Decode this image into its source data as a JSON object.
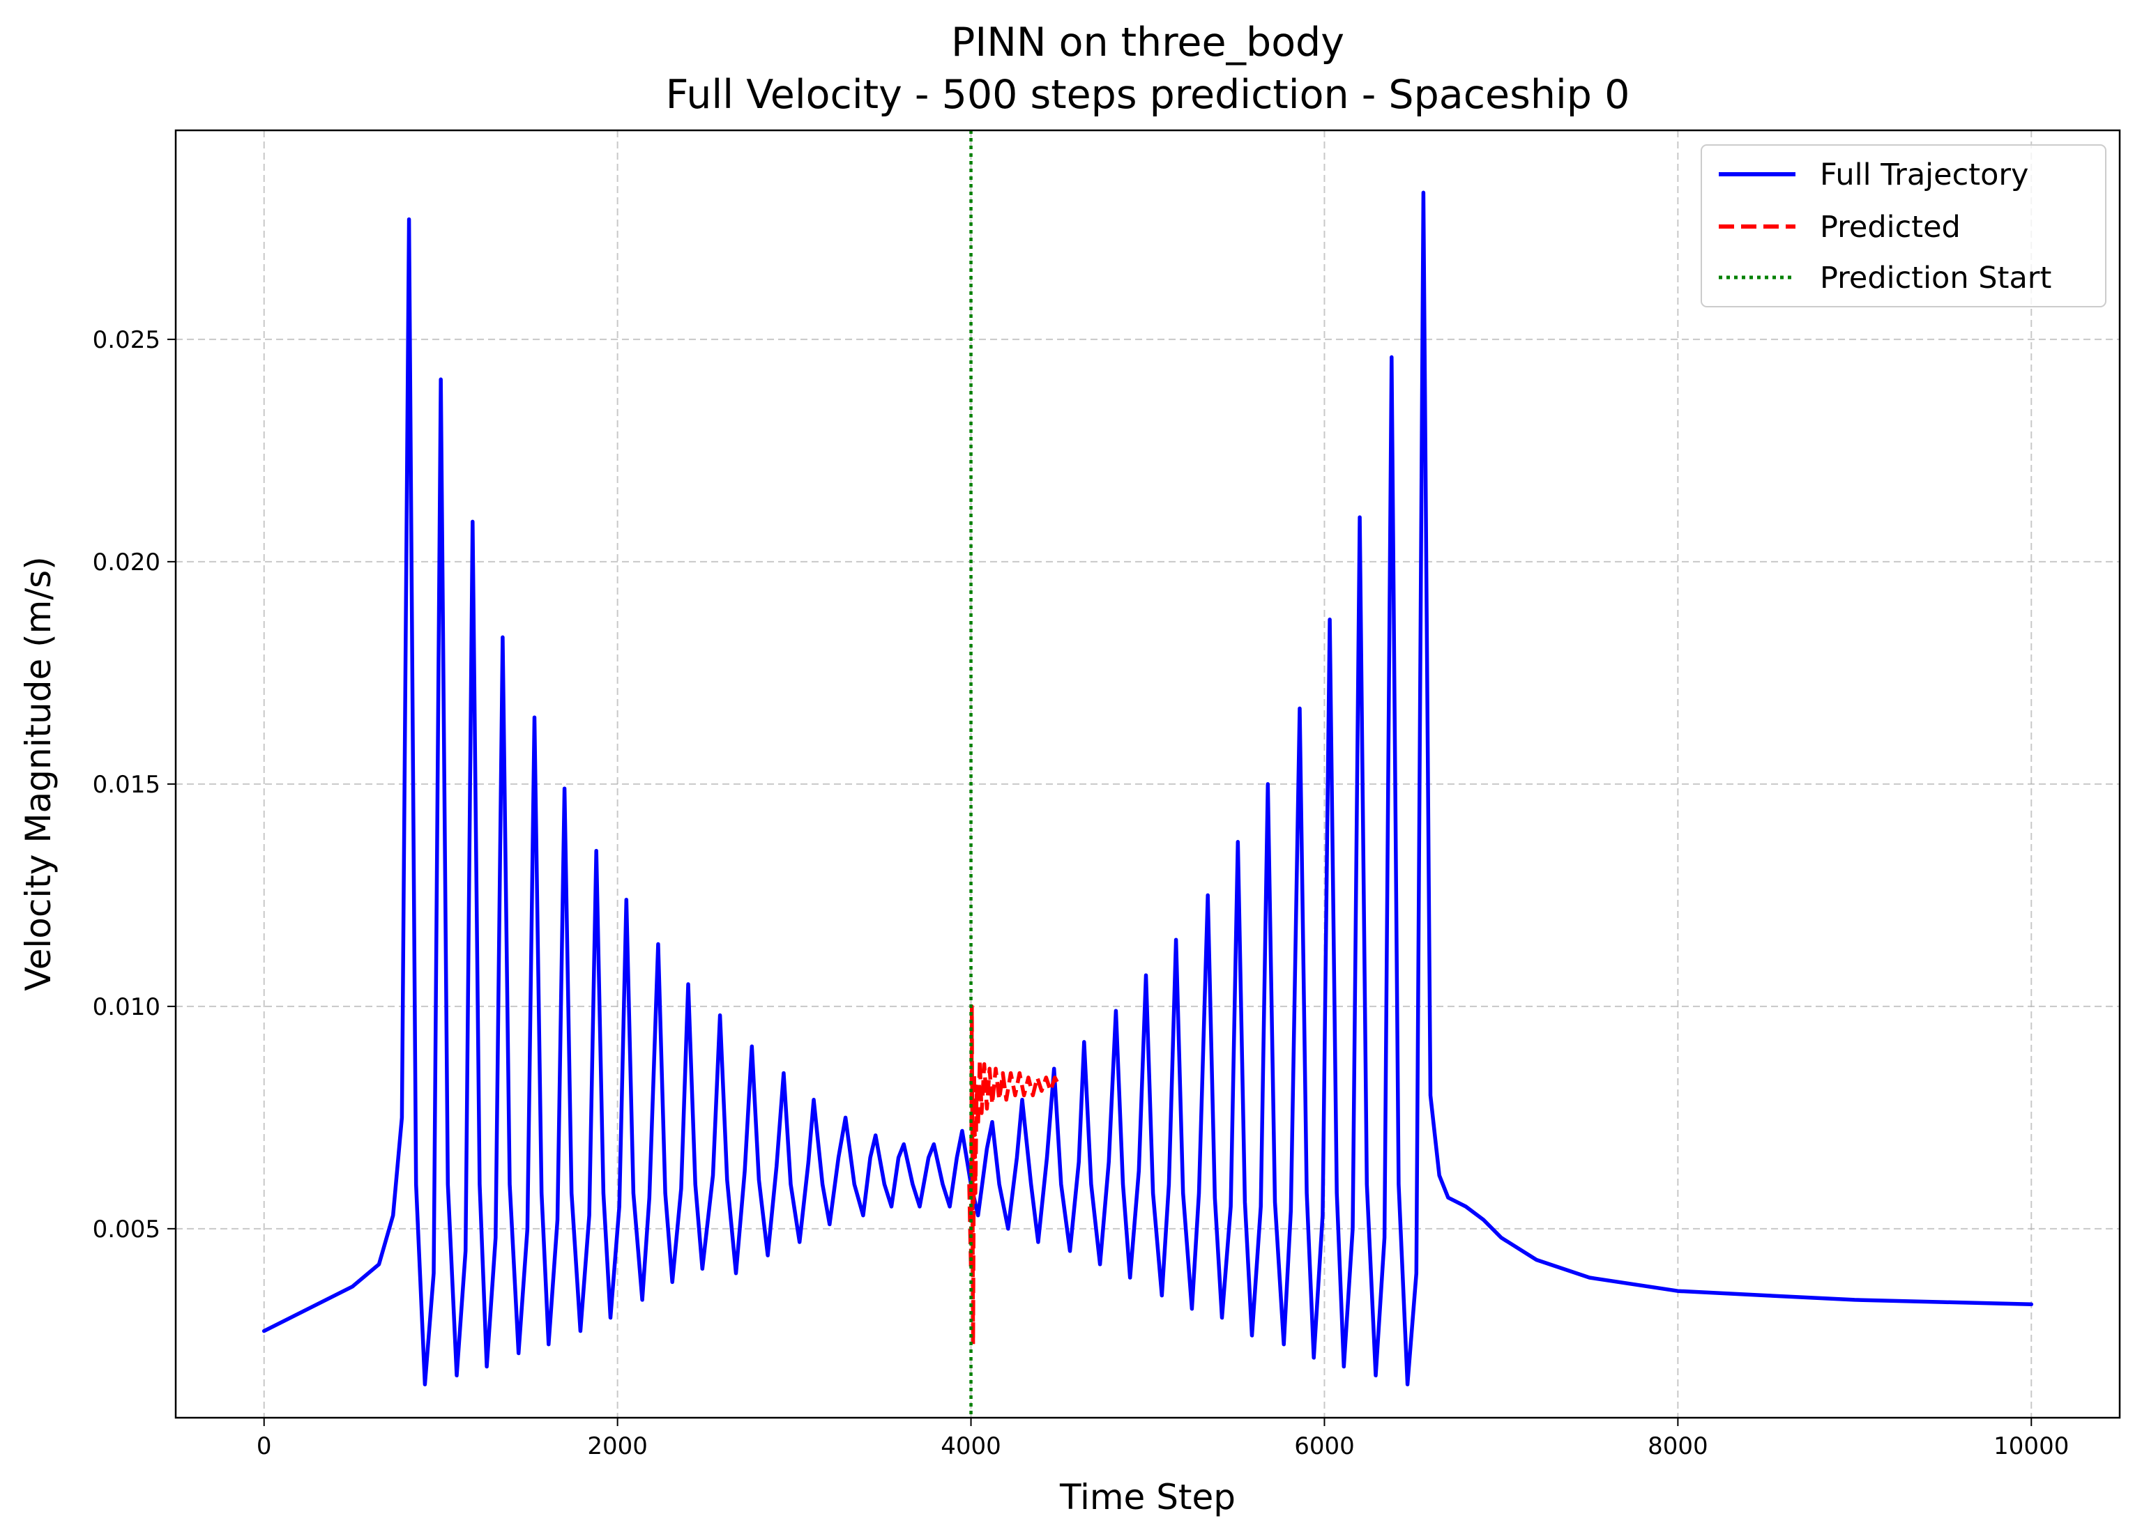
{
  "chart_data": {
    "type": "line",
    "title": "PINN on three_body",
    "subtitle": "Full Velocity - 500 steps prediction - Spaceship 0",
    "xlabel": "Time Step",
    "ylabel": "Velocity Magnitude (m/s)",
    "xlim": [
      -500,
      10500
    ],
    "ylim": [
      0.00075,
      0.0297
    ],
    "x_ticks": [
      0,
      2000,
      4000,
      6000,
      8000,
      10000
    ],
    "x_tick_labels": [
      "0",
      "2000",
      "4000",
      "6000",
      "8000",
      "10000"
    ],
    "y_ticks": [
      0.005,
      0.01,
      0.015,
      0.02,
      0.025
    ],
    "y_tick_labels": [
      "0.005",
      "0.010",
      "0.015",
      "0.020",
      "0.025"
    ],
    "grid": true,
    "legend_position": "top-right",
    "colors": {
      "full": "#0000ff",
      "predicted": "#ff0000",
      "start": "#008000",
      "grid": "#b0b0b0"
    },
    "legend": [
      {
        "label": "Full Trajectory",
        "style": "solid",
        "color": "#0000ff"
      },
      {
        "label": "Predicted",
        "style": "dashed",
        "color": "#ff0000"
      },
      {
        "label": "Prediction Start",
        "style": "dotted",
        "color": "#008000"
      }
    ],
    "series": [
      {
        "name": "Full Trajectory",
        "style": "solid",
        "color": "#0000ff",
        "points": [
          [
            0,
            0.0027
          ],
          [
            300,
            0.0033
          ],
          [
            500,
            0.0037
          ],
          [
            650,
            0.0042
          ],
          [
            730,
            0.0053
          ],
          [
            780,
            0.0075
          ],
          [
            820,
            0.0277
          ],
          [
            860,
            0.006
          ],
          [
            910,
            0.0015
          ],
          [
            960,
            0.004
          ],
          [
            1000,
            0.0241
          ],
          [
            1040,
            0.006
          ],
          [
            1090,
            0.0017
          ],
          [
            1140,
            0.0045
          ],
          [
            1180,
            0.0209
          ],
          [
            1220,
            0.006
          ],
          [
            1260,
            0.0019
          ],
          [
            1310,
            0.0048
          ],
          [
            1350,
            0.0183
          ],
          [
            1390,
            0.006
          ],
          [
            1440,
            0.0022
          ],
          [
            1490,
            0.005
          ],
          [
            1530,
            0.0165
          ],
          [
            1570,
            0.0058
          ],
          [
            1610,
            0.0024
          ],
          [
            1660,
            0.0052
          ],
          [
            1700,
            0.0149
          ],
          [
            1740,
            0.0058
          ],
          [
            1790,
            0.0027
          ],
          [
            1840,
            0.0053
          ],
          [
            1880,
            0.0135
          ],
          [
            1920,
            0.0058
          ],
          [
            1960,
            0.003
          ],
          [
            2010,
            0.0055
          ],
          [
            2050,
            0.0124
          ],
          [
            2090,
            0.0058
          ],
          [
            2140,
            0.0034
          ],
          [
            2180,
            0.0057
          ],
          [
            2230,
            0.0114
          ],
          [
            2270,
            0.0058
          ],
          [
            2310,
            0.0038
          ],
          [
            2360,
            0.0059
          ],
          [
            2400,
            0.0105
          ],
          [
            2440,
            0.006
          ],
          [
            2480,
            0.0041
          ],
          [
            2540,
            0.0062
          ],
          [
            2580,
            0.0098
          ],
          [
            2620,
            0.0061
          ],
          [
            2670,
            0.004
          ],
          [
            2720,
            0.0063
          ],
          [
            2760,
            0.0091
          ],
          [
            2800,
            0.0061
          ],
          [
            2850,
            0.0044
          ],
          [
            2900,
            0.0064
          ],
          [
            2940,
            0.0085
          ],
          [
            2980,
            0.006
          ],
          [
            3030,
            0.0047
          ],
          [
            3080,
            0.0065
          ],
          [
            3110,
            0.0079
          ],
          [
            3160,
            0.006
          ],
          [
            3200,
            0.0051
          ],
          [
            3250,
            0.0066
          ],
          [
            3290,
            0.0075
          ],
          [
            3340,
            0.006
          ],
          [
            3390,
            0.0053
          ],
          [
            3430,
            0.0066
          ],
          [
            3460,
            0.0071
          ],
          [
            3510,
            0.006
          ],
          [
            3550,
            0.0055
          ],
          [
            3590,
            0.0066
          ],
          [
            3620,
            0.0069
          ],
          [
            3670,
            0.006
          ],
          [
            3710,
            0.0055
          ],
          [
            3760,
            0.0066
          ],
          [
            3790,
            0.0069
          ],
          [
            3840,
            0.006
          ],
          [
            3880,
            0.0055
          ],
          [
            3920,
            0.0066
          ],
          [
            3950,
            0.0072
          ],
          [
            4000,
            0.006
          ],
          [
            4040,
            0.0053
          ],
          [
            4090,
            0.0068
          ],
          [
            4120,
            0.0074
          ],
          [
            4160,
            0.006
          ],
          [
            4210,
            0.005
          ],
          [
            4260,
            0.0066
          ],
          [
            4290,
            0.0079
          ],
          [
            4340,
            0.006
          ],
          [
            4380,
            0.0047
          ],
          [
            4430,
            0.0066
          ],
          [
            4470,
            0.0086
          ],
          [
            4510,
            0.006
          ],
          [
            4560,
            0.0045
          ],
          [
            4610,
            0.0065
          ],
          [
            4640,
            0.0092
          ],
          [
            4680,
            0.006
          ],
          [
            4730,
            0.0042
          ],
          [
            4780,
            0.0065
          ],
          [
            4820,
            0.0099
          ],
          [
            4860,
            0.006
          ],
          [
            4900,
            0.0039
          ],
          [
            4950,
            0.0063
          ],
          [
            4990,
            0.0107
          ],
          [
            5030,
            0.0058
          ],
          [
            5080,
            0.0035
          ],
          [
            5120,
            0.006
          ],
          [
            5160,
            0.0115
          ],
          [
            5200,
            0.0058
          ],
          [
            5250,
            0.0032
          ],
          [
            5290,
            0.0058
          ],
          [
            5340,
            0.0125
          ],
          [
            5380,
            0.0057
          ],
          [
            5420,
            0.003
          ],
          [
            5470,
            0.0055
          ],
          [
            5510,
            0.0137
          ],
          [
            5550,
            0.0056
          ],
          [
            5590,
            0.0026
          ],
          [
            5640,
            0.0055
          ],
          [
            5680,
            0.015
          ],
          [
            5720,
            0.0056
          ],
          [
            5770,
            0.0024
          ],
          [
            5810,
            0.0054
          ],
          [
            5860,
            0.0167
          ],
          [
            5900,
            0.0058
          ],
          [
            5940,
            0.0021
          ],
          [
            5990,
            0.0053
          ],
          [
            6030,
            0.0187
          ],
          [
            6070,
            0.0058
          ],
          [
            6110,
            0.0019
          ],
          [
            6160,
            0.005
          ],
          [
            6200,
            0.021
          ],
          [
            6240,
            0.006
          ],
          [
            6290,
            0.0017
          ],
          [
            6340,
            0.0048
          ],
          [
            6380,
            0.0246
          ],
          [
            6420,
            0.006
          ],
          [
            6470,
            0.0015
          ],
          [
            6520,
            0.004
          ],
          [
            6560,
            0.0283
          ],
          [
            6600,
            0.008
          ],
          [
            6650,
            0.0062
          ],
          [
            6700,
            0.0057
          ],
          [
            6800,
            0.0055
          ],
          [
            6900,
            0.0052
          ],
          [
            7000,
            0.0048
          ],
          [
            7200,
            0.0043
          ],
          [
            7500,
            0.0039
          ],
          [
            8000,
            0.0036
          ],
          [
            8500,
            0.0035
          ],
          [
            9000,
            0.0034
          ],
          [
            9500,
            0.00335
          ],
          [
            10000,
            0.0033
          ]
        ]
      },
      {
        "name": "Predicted",
        "style": "dashed",
        "color": "#ff0000",
        "points": [
          [
            3990,
            0.006
          ],
          [
            4000,
            0.0041
          ],
          [
            4005,
            0.01
          ],
          [
            4012,
            0.0024
          ],
          [
            4018,
            0.0085
          ],
          [
            4025,
            0.0058
          ],
          [
            4032,
            0.0082
          ],
          [
            4040,
            0.0073
          ],
          [
            4050,
            0.0088
          ],
          [
            4060,
            0.0076
          ],
          [
            4075,
            0.0087
          ],
          [
            4090,
            0.0077
          ],
          [
            4105,
            0.0086
          ],
          [
            4120,
            0.0078
          ],
          [
            4140,
            0.0086
          ],
          [
            4160,
            0.0079
          ],
          [
            4180,
            0.0085
          ],
          [
            4200,
            0.0079
          ],
          [
            4225,
            0.0085
          ],
          [
            4250,
            0.008
          ],
          [
            4275,
            0.0085
          ],
          [
            4300,
            0.008
          ],
          [
            4325,
            0.0084
          ],
          [
            4350,
            0.008
          ],
          [
            4375,
            0.0084
          ],
          [
            4400,
            0.0081
          ],
          [
            4425,
            0.0084
          ],
          [
            4450,
            0.0081
          ],
          [
            4475,
            0.0084
          ],
          [
            4500,
            0.0082
          ]
        ]
      }
    ],
    "vertical_line": {
      "name": "Prediction Start",
      "x": 4000,
      "style": "dotted",
      "color": "#008000"
    }
  }
}
